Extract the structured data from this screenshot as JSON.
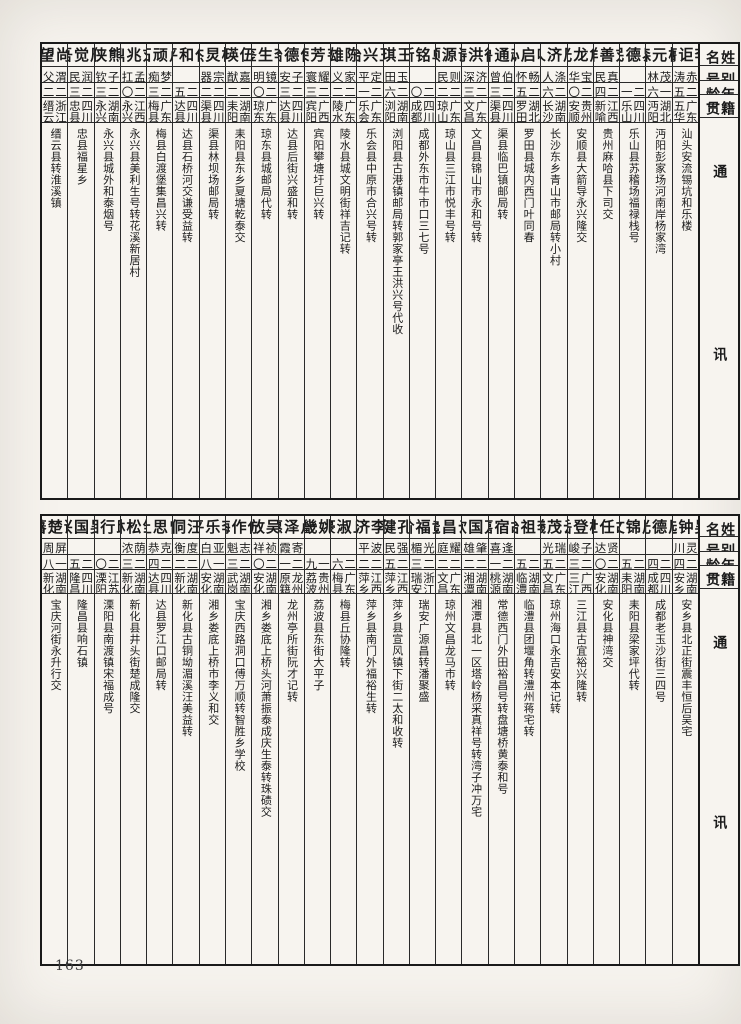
{
  "page": {
    "number": "163"
  },
  "colors": {
    "ink": "#1b1b1b",
    "paper": "#f6f3ee",
    "rule": "#2a2a2a"
  },
  "headers": {
    "name": "姓名",
    "alias": "别号",
    "age": "年龄",
    "native": "籍贯",
    "address": "通讯处"
  },
  "tables": [
    {
      "entries": [
        {
          "name": "李讵膺",
          "alias": "赤涛",
          "age": "二五",
          "native": "广东五华",
          "address": "汕头安流锡坑和乐楼"
        },
        {
          "name": "杨元森",
          "alias": "茂林",
          "age": "一六",
          "native": "湖北沔阳",
          "address": "沔阳彭家场河南岸杨家湾"
        },
        {
          "name": "易德民",
          "alias": "",
          "age": "二一",
          "native": "四川乐山",
          "address": "乐山县苏稽场福禄栈号"
        },
        {
          "name": "刘善祥",
          "alias": "真民",
          "age": "二四",
          "native": "江西新喻",
          "address": "贵州麻哈县下司交"
        },
        {
          "name": "詹龙光",
          "alias": "宝华",
          "age": "二〇",
          "native": "贵州安顺",
          "address": "安顺县大箭导永兴隆交"
        },
        {
          "name": "周济人",
          "alias": "涤人",
          "age": "二六",
          "native": "湖南长沙",
          "address": "长沙东乡青山市邮局转小村"
        },
        {
          "name": "叶启心",
          "alias": "畅怀",
          "age": "二五",
          "native": "湖北罗田",
          "address": "罗田县城内西门叶同春"
        },
        {
          "name": "赵通鲁",
          "alias": "伯曾",
          "age": "二三",
          "native": "四川渠县",
          "address": "渠县临巴镇邮局转"
        },
        {
          "name": "徐洪涛",
          "alias": "济深",
          "age": "二三",
          "native": "广东文昌",
          "address": "文昌县锦山市永和号转"
        },
        {
          "name": "谢源顺",
          "alias": "则民",
          "age": "二二",
          "native": "广东琼山",
          "address": "琼山县三江市悦丰号转"
        },
        {
          "name": "单铭新",
          "alias": "",
          "age": "二〇",
          "native": "四川成都",
          "address": "成都外东市牛市口三七号"
        },
        {
          "name": "王琪",
          "alias": "玉田",
          "age": "二六",
          "native": "湖南浏阳",
          "address": "浏阳县古港镇邮局转郭家亭王洪兴号代收"
        },
        {
          "name": "王兴治",
          "alias": "定平",
          "age": "二一",
          "native": "广东乐会",
          "address": "乐会县中原市合兴号转"
        },
        {
          "name": "陈雄",
          "alias": "家义",
          "age": "二二",
          "native": "广东陵水",
          "address": "陵水县城文明街祥吉记转"
        },
        {
          "name": "韦芳荣",
          "alias": "耀寰",
          "age": "二三",
          "native": "广西宾阳",
          "address": "宾阳攀塘圩巨兴转"
        },
        {
          "name": "何德治",
          "alias": "子安",
          "age": "二三",
          "native": "四川达县",
          "address": "达县后街兴盛和转"
        },
        {
          "name": "李生鉴",
          "alias": "镜明",
          "age": "二〇",
          "native": "广东琼东",
          "address": "琼东县城邮局代转"
        },
        {
          "name": "伍瑛",
          "alias": "嘉猷",
          "age": "二二",
          "native": "湖南耒阳",
          "address": "耒阳县东乡夏塘乾泰交"
        },
        {
          "name": "杨炅杰",
          "alias": "宗器",
          "age": "二二",
          "native": "四川渠县",
          "address": "渠县林坝场邮局转"
        },
        {
          "name": "任和平",
          "alias": "",
          "age": "二五",
          "native": "四川达县",
          "address": "达县石桥河交谦受益转"
        },
        {
          "name": "卢顽石",
          "alias": "梦痴",
          "age": "二三",
          "native": "广东梅县",
          "address": "梅县白渡堡集昌兴转"
        },
        {
          "name": "刘兆鼎",
          "alias": "孟扛",
          "age": "二〇",
          "native": "江西永兴",
          "address": "永兴县美利生号转花溪新居村"
        },
        {
          "name": "熊侠",
          "alias": "子钦",
          "age": "二三",
          "native": "湖南永兴",
          "address": "永兴县城外和泰烟号"
        },
        {
          "name": "周觉吾",
          "alias": "润民",
          "age": "二三",
          "native": "四川忠县",
          "address": "忠县福星乡"
        },
        {
          "name": "尚望",
          "alias": "渭父",
          "age": "二二",
          "native": "浙江缙云",
          "address": "缙云县转淮溪镇"
        }
      ]
    },
    {
      "entries": [
        {
          "name": "吴钟选",
          "alias": "灵川",
          "age": "二四",
          "native": "湖南安乡",
          "address": "安乡县北正街震丰恒后吴宅"
        },
        {
          "name": "周德光",
          "alias": "",
          "age": "二四",
          "native": "四川成都",
          "address": "成都老玉沙街三四号"
        },
        {
          "name": "周锦文",
          "alias": "",
          "age": "二五",
          "native": "湖南耒阳",
          "address": "耒阳县梁家坪代转"
        },
        {
          "name": "胡任世",
          "alias": "贤达",
          "age": "二〇",
          "native": "湖南安化",
          "address": "安化县神湾交"
        },
        {
          "name": "杨登岳",
          "alias": "子峻",
          "age": "二三",
          "native": "广西三江",
          "address": "三江县古宜裕兴隆转"
        },
        {
          "name": "云茂曦",
          "alias": "瑞光",
          "age": "二五",
          "native": "广东文昌",
          "address": "琼州海口永吉安本记转"
        },
        {
          "name": "李祖治",
          "alias": "",
          "age": "二五",
          "native": "湖南临澧",
          "address": "临澧县团堰角转澧州蒋宅转"
        },
        {
          "name": "胡宿嘉",
          "alias": "逢喜",
          "age": "二一",
          "native": "湖南桃源",
          "address": "常德西门外田裕昌号转盘塘桥黄泰和号"
        },
        {
          "name": "万国钦",
          "alias": "肇雄",
          "age": "二二",
          "native": "湖南湘潭",
          "address": "湘潭县北一区塔岭杨采真祥号转湾子冲万宅"
        },
        {
          "name": "云昌毚",
          "alias": "耀庭",
          "age": "二二",
          "native": "广东文昌",
          "address": "琼州文昌龙马市转"
        },
        {
          "name": "黄福阶",
          "alias": "光楣",
          "age": "二三",
          "native": "浙江瑞安",
          "address": "瑞安广源昌转潘聚盛"
        },
        {
          "name": "孔健",
          "alias": "强民",
          "age": "二五",
          "native": "江西萍乡",
          "address": "萍乡县宣风镇下街二太和收转"
        },
        {
          "name": "李济",
          "alias": "波平",
          "age": "二二",
          "native": "江西萍乡",
          "address": "萍乡县南门外福裕生转"
        },
        {
          "name": "丘淑豪",
          "alias": "",
          "age": "二六",
          "native": "广东梅县",
          "address": "梅县丘协隆转"
        },
        {
          "name": "姚畿",
          "alias": "",
          "age": "一九",
          "native": "贵州荔波",
          "address": "荔波县东街大平子"
        },
        {
          "name": "卢泽惠",
          "alias": "寄霞",
          "age": "二一",
          "native": "广西龙州原籍广东",
          "address": "龙州亭所街阮才记转"
        },
        {
          "name": "吴放",
          "alias": "祯祥",
          "age": "二〇",
          "native": "湖南安化",
          "address": "湘乡娄底上桥头河萧振泰成庆生泰转珠碛交"
        },
        {
          "name": "傅作梅",
          "alias": "志魁",
          "age": "二三",
          "native": "湖南武岗",
          "address": "宝庆西路洞口傅万顺转智胜乡学校"
        },
        {
          "name": "李乐平",
          "alias": "亚白",
          "age": "一八",
          "native": "湖南安化",
          "address": "湘乡娄底上桥市李义和交"
        },
        {
          "name": "汪侗",
          "alias": "度衡",
          "age": "二二",
          "native": "湖南新化",
          "address": "新化县古铜坳湄溪汪美益转"
        },
        {
          "name": "曾思让",
          "alias": "克恭",
          "age": "二四",
          "native": "四川达县",
          "address": "达县罗江口邮局转"
        },
        {
          "name": "邹松林",
          "alias": "荫浓",
          "age": "二三",
          "native": "湖南新化",
          "address": "新化县井头街楚成隆交"
        },
        {
          "name": "邱行湘",
          "alias": "",
          "age": "二〇",
          "native": "江苏溧阳",
          "address": "溧阳县南渡镇宋福成号"
        },
        {
          "name": "吴国兴",
          "alias": "",
          "age": "二五",
          "native": "四川隆昌",
          "address": "隆昌县响石镇"
        },
        {
          "name": "谢楚藩",
          "alias": "屏周",
          "age": "一八",
          "native": "湖南新化",
          "address": "宝庆河街永升行交"
        }
      ]
    }
  ]
}
